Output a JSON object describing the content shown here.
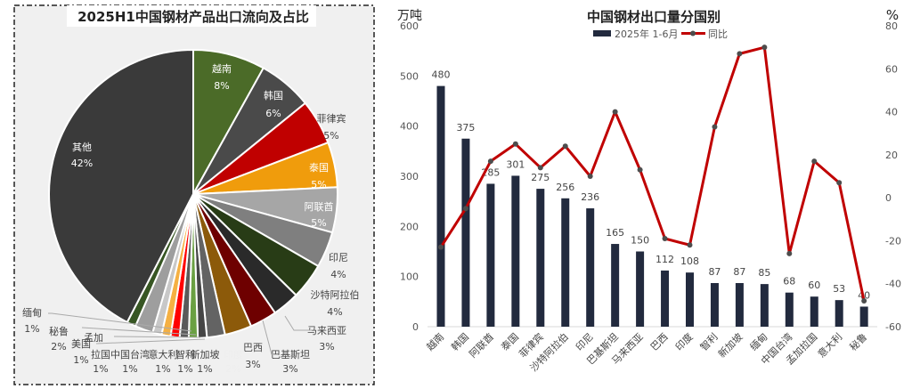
{
  "chart_data": [
    {
      "type": "pie",
      "title": "2025H1中国钢材产品出口流向及占比",
      "unit": "%",
      "slices": [
        {
          "label": "越南",
          "value": 8,
          "color": "#4b6b28"
        },
        {
          "label": "韩国",
          "value": 6,
          "color": "#4a4a4a"
        },
        {
          "label": "菲律宾",
          "value": 5,
          "color": "#c00000"
        },
        {
          "label": "泰国",
          "value": 5,
          "color": "#f09c0c"
        },
        {
          "label": "阿联酋",
          "value": 5,
          "color": "#a6a6a6"
        },
        {
          "label": "印尼",
          "value": 4,
          "color": "#7f7f7f"
        },
        {
          "label": "沙特阿拉伯",
          "value": 4,
          "color": "#283c16"
        },
        {
          "label": "马来西亚",
          "value": 3,
          "color": "#2a2a2a"
        },
        {
          "label": "巴基斯坦",
          "value": 3,
          "color": "#6e0000"
        },
        {
          "label": "巴西",
          "value": 3,
          "color": "#8c5a0a"
        },
        {
          "label": "印度",
          "value": 2,
          "color": "#636363"
        },
        {
          "label": "新加坡",
          "value": 1,
          "color": "#454545"
        },
        {
          "label": "智利",
          "value": 1,
          "color": "#6aa042"
        },
        {
          "label": "意大利",
          "value": 1,
          "color": "#5a5a5a"
        },
        {
          "label": "中国台湾",
          "value": 1,
          "color": "#ff0000"
        },
        {
          "label": "孟加拉国",
          "value": 1,
          "color": "#f5b042"
        },
        {
          "label": "美国",
          "value": 1,
          "color": "#c8c8c8"
        },
        {
          "label": "秘鲁",
          "value": 2,
          "color": "#9e9e9e"
        },
        {
          "label": "缅甸",
          "value": 1,
          "color": "#375623"
        },
        {
          "label": "其他",
          "value": 42,
          "color": "#3a3a3a"
        }
      ]
    },
    {
      "type": "bar+line",
      "title": "中国钢材出口量分国别",
      "ylabel_left": "万吨",
      "ylabel_right": "%",
      "ylim_left": [
        0,
        600
      ],
      "ylim_right": [
        -60,
        80
      ],
      "yticks_left": [
        0,
        100,
        200,
        300,
        400,
        500,
        600
      ],
      "yticks_right": [
        -60,
        -40,
        -20,
        0,
        20,
        40,
        60,
        80
      ],
      "legend_position": "top-center",
      "categories": [
        "越南",
        "韩国",
        "阿联酋",
        "泰国",
        "菲律宾",
        "沙特阿拉伯",
        "印尼",
        "巴基斯坦",
        "马来西亚",
        "巴西",
        "印度",
        "智利",
        "新加坡",
        "缅甸",
        "中国台湾",
        "孟加拉国",
        "意大利",
        "秘鲁"
      ],
      "series": [
        {
          "name": "2025年 1-6月",
          "type": "bar",
          "axis": "left",
          "color": "#222a3e",
          "values": [
            480,
            375,
            285,
            301,
            275,
            256,
            236,
            165,
            150,
            112,
            108,
            87,
            87,
            85,
            68,
            60,
            53,
            40
          ]
        },
        {
          "name": "同比",
          "type": "line",
          "axis": "right",
          "color": "#c00000",
          "marker_color": "#4d4d4d",
          "values": [
            -23,
            -5,
            17,
            25,
            14,
            24,
            10,
            40,
            13,
            -19,
            -22,
            33,
            67,
            70,
            -26,
            17,
            7,
            -48
          ]
        }
      ]
    }
  ]
}
